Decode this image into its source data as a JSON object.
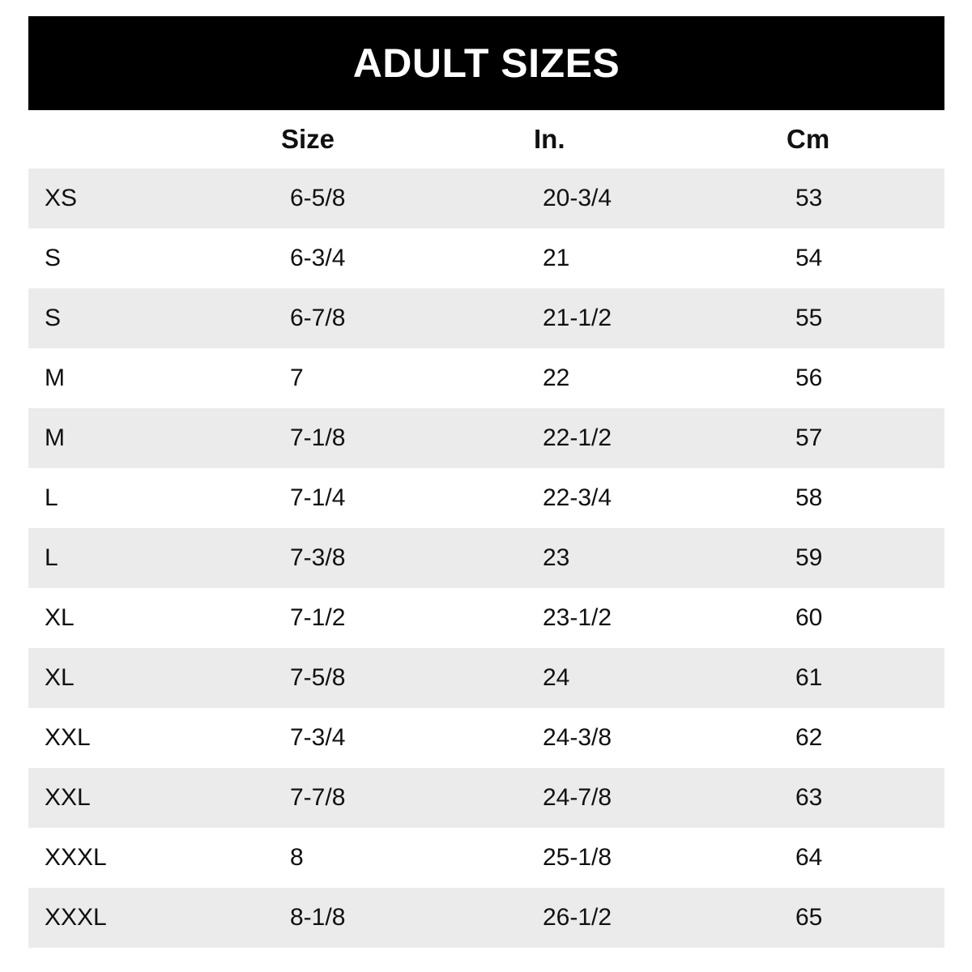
{
  "chart_data": {
    "type": "table",
    "title": "ADULT SIZES",
    "columns": [
      "",
      "Size",
      "In.",
      "Cm"
    ],
    "rows": [
      [
        "XS",
        "6-5/8",
        "20-3/4",
        "53"
      ],
      [
        "S",
        "6-3/4",
        "21",
        "54"
      ],
      [
        "S",
        "6-7/8",
        "21-1/2",
        "55"
      ],
      [
        "M",
        "7",
        "22",
        "56"
      ],
      [
        "M",
        "7-1/8",
        "22-1/2",
        "57"
      ],
      [
        "L",
        "7-1/4",
        "22-3/4",
        "58"
      ],
      [
        "L",
        "7-3/8",
        "23",
        "59"
      ],
      [
        "XL",
        "7-1/2",
        "23-1/2",
        "60"
      ],
      [
        "XL",
        "7-5/8",
        "24",
        "61"
      ],
      [
        "XXL",
        "7-3/4",
        "24-3/8",
        "62"
      ],
      [
        "XXL",
        "7-7/8",
        "24-7/8",
        "63"
      ],
      [
        "XXXL",
        "8",
        "25-1/8",
        "64"
      ],
      [
        "XXXL",
        "8-1/8",
        "26-1/2",
        "65"
      ]
    ],
    "layout": {
      "striped": true,
      "first_row_shaded": true,
      "legend": "none",
      "grid": "off"
    }
  },
  "colors": {
    "banner_bg": "#000000",
    "banner_text": "#ffffff",
    "stripe_bg": "#ebebeb",
    "text": "#111111",
    "page_bg": "#ffffff"
  }
}
